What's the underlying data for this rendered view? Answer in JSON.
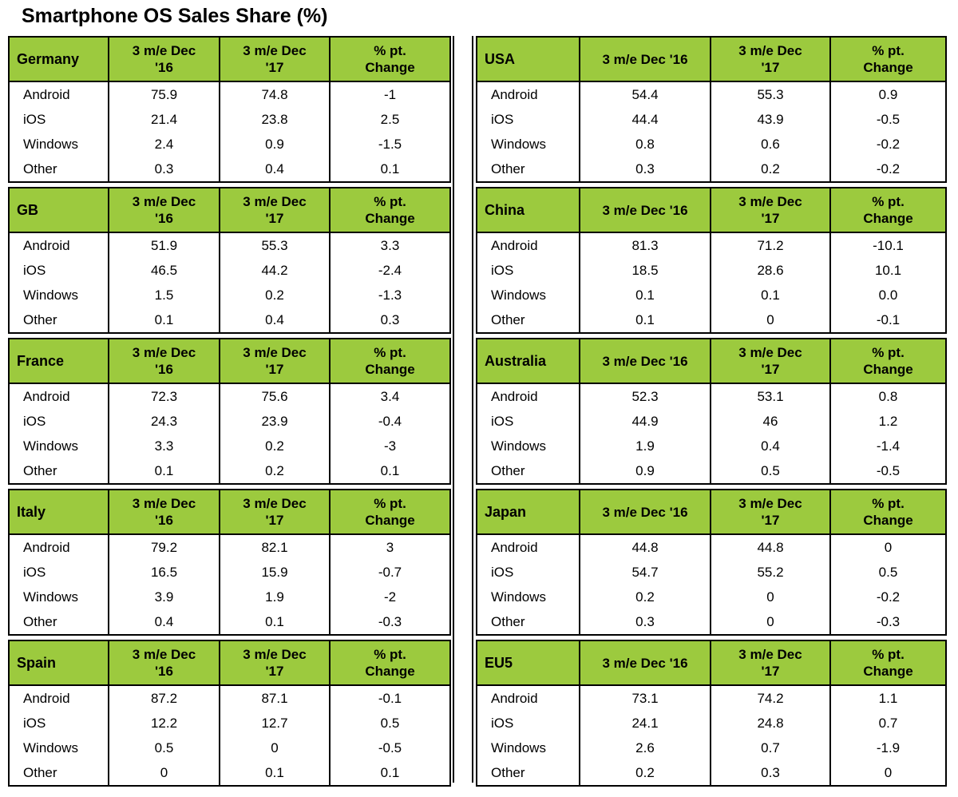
{
  "title": "Smartphone OS Sales Share (%)",
  "colors": {
    "header_green": "#9cca3e",
    "border": "#000000",
    "background": "#ffffff",
    "text": "#000000"
  },
  "chart_data": {
    "type": "table",
    "title": "Smartphone OS Sales Share (%)",
    "column_headers": [
      "3 m/e Dec '16",
      "3 m/e Dec '17",
      "% pt. Change"
    ],
    "os_row_labels": [
      "Android",
      "iOS",
      "Windows",
      "Other"
    ],
    "tables": [
      {
        "region": "Germany",
        "rows": [
          {
            "os": "Android",
            "values": [
              "75.9",
              "74.8",
              "-1"
            ]
          },
          {
            "os": "iOS",
            "values": [
              "21.4",
              "23.8",
              "2.5"
            ]
          },
          {
            "os": "Windows",
            "values": [
              "2.4",
              "0.9",
              "-1.5"
            ]
          },
          {
            "os": "Other",
            "values": [
              "0.3",
              "0.4",
              "0.1"
            ]
          }
        ]
      },
      {
        "region": "GB",
        "rows": [
          {
            "os": "Android",
            "values": [
              "51.9",
              "55.3",
              "3.3"
            ]
          },
          {
            "os": "iOS",
            "values": [
              "46.5",
              "44.2",
              "-2.4"
            ]
          },
          {
            "os": "Windows",
            "values": [
              "1.5",
              "0.2",
              "-1.3"
            ]
          },
          {
            "os": "Other",
            "values": [
              "0.1",
              "0.4",
              "0.3"
            ]
          }
        ]
      },
      {
        "region": "France",
        "rows": [
          {
            "os": "Android",
            "values": [
              "72.3",
              "75.6",
              "3.4"
            ]
          },
          {
            "os": "iOS",
            "values": [
              "24.3",
              "23.9",
              "-0.4"
            ]
          },
          {
            "os": "Windows",
            "values": [
              "3.3",
              "0.2",
              "-3"
            ]
          },
          {
            "os": "Other",
            "values": [
              "0.1",
              "0.2",
              "0.1"
            ]
          }
        ]
      },
      {
        "region": "Italy",
        "rows": [
          {
            "os": "Android",
            "values": [
              "79.2",
              "82.1",
              "3"
            ]
          },
          {
            "os": "iOS",
            "values": [
              "16.5",
              "15.9",
              "-0.7"
            ]
          },
          {
            "os": "Windows",
            "values": [
              "3.9",
              "1.9",
              "-2"
            ]
          },
          {
            "os": "Other",
            "values": [
              "0.4",
              "0.1",
              "-0.3"
            ]
          }
        ]
      },
      {
        "region": "Spain",
        "rows": [
          {
            "os": "Android",
            "values": [
              "87.2",
              "87.1",
              "-0.1"
            ]
          },
          {
            "os": "iOS",
            "values": [
              "12.2",
              "12.7",
              "0.5"
            ]
          },
          {
            "os": "Windows",
            "values": [
              "0.5",
              "0",
              "-0.5"
            ]
          },
          {
            "os": "Other",
            "values": [
              "0",
              "0.1",
              "0.1"
            ]
          }
        ]
      },
      {
        "region": "USA",
        "rows": [
          {
            "os": "Android",
            "values": [
              "54.4",
              "55.3",
              "0.9"
            ]
          },
          {
            "os": "iOS",
            "values": [
              "44.4",
              "43.9",
              "-0.5"
            ]
          },
          {
            "os": "Windows",
            "values": [
              "0.8",
              "0.6",
              "-0.2"
            ]
          },
          {
            "os": "Other",
            "values": [
              "0.3",
              "0.2",
              "-0.2"
            ]
          }
        ]
      },
      {
        "region": "China",
        "rows": [
          {
            "os": "Android",
            "values": [
              "81.3",
              "71.2",
              "-10.1"
            ]
          },
          {
            "os": "iOS",
            "values": [
              "18.5",
              "28.6",
              "10.1"
            ]
          },
          {
            "os": "Windows",
            "values": [
              "0.1",
              "0.1",
              "0.0"
            ]
          },
          {
            "os": "Other",
            "values": [
              "0.1",
              "0",
              "-0.1"
            ]
          }
        ]
      },
      {
        "region": "Australia",
        "rows": [
          {
            "os": "Android",
            "values": [
              "52.3",
              "53.1",
              "0.8"
            ]
          },
          {
            "os": "iOS",
            "values": [
              "44.9",
              "46",
              "1.2"
            ]
          },
          {
            "os": "Windows",
            "values": [
              "1.9",
              "0.4",
              "-1.4"
            ]
          },
          {
            "os": "Other",
            "values": [
              "0.9",
              "0.5",
              "-0.5"
            ]
          }
        ]
      },
      {
        "region": "Japan",
        "rows": [
          {
            "os": "Android",
            "values": [
              "44.8",
              "44.8",
              "0"
            ]
          },
          {
            "os": "iOS",
            "values": [
              "54.7",
              "55.2",
              "0.5"
            ]
          },
          {
            "os": "Windows",
            "values": [
              "0.2",
              "0",
              "-0.2"
            ]
          },
          {
            "os": "Other",
            "values": [
              "0.3",
              "0",
              "-0.3"
            ]
          }
        ]
      },
      {
        "region": "EU5",
        "rows": [
          {
            "os": "Android",
            "values": [
              "73.1",
              "74.2",
              "1.1"
            ]
          },
          {
            "os": "iOS",
            "values": [
              "24.1",
              "24.8",
              "0.7"
            ]
          },
          {
            "os": "Windows",
            "values": [
              "2.6",
              "0.7",
              "-1.9"
            ]
          },
          {
            "os": "Other",
            "values": [
              "0.2",
              "0.3",
              "0"
            ]
          }
        ]
      }
    ]
  }
}
